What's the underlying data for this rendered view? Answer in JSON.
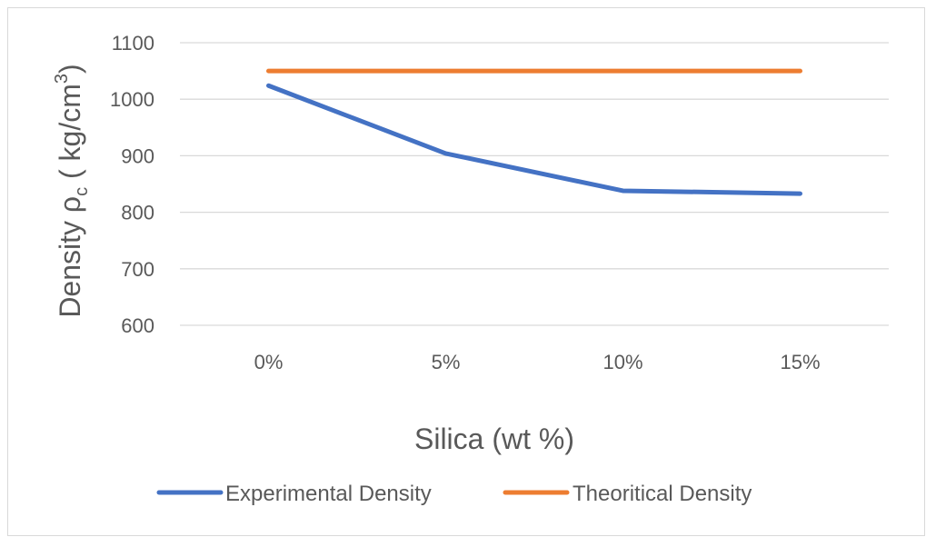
{
  "chart_data": {
    "type": "line",
    "title": "",
    "categories": [
      "0%",
      "5%",
      "10%",
      "15%"
    ],
    "series": [
      {
        "name": "Experimental Density",
        "color": "#4472C4",
        "values": [
          1024,
          904,
          838,
          833
        ]
      },
      {
        "name": "Theoritical Density",
        "color": "#ED7D31",
        "values": [
          1050,
          1050,
          1050,
          1050
        ]
      }
    ],
    "xlabel": "Silica (wt %)",
    "ylabel": {
      "main": "Density ρ",
      "sub": "c",
      "unit_open": " ( kg/cm",
      "sup": "3",
      "unit_close": ")"
    },
    "ylim": [
      600,
      1100
    ],
    "yticks": [
      600,
      700,
      800,
      900,
      1000,
      1100
    ],
    "grid": true,
    "legend_position": "bottom"
  }
}
